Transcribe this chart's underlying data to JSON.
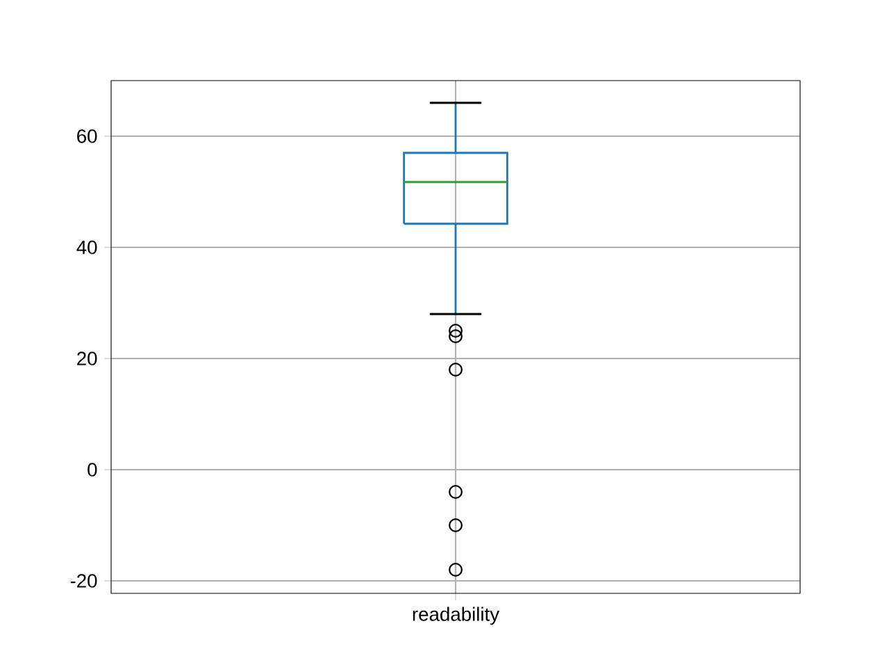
{
  "chart_data": {
    "type": "box",
    "categories": [
      "readability"
    ],
    "boxes": [
      {
        "low": 28,
        "q1": 44.25,
        "median": 51.75,
        "q3": 57,
        "high": 66,
        "outliers": [
          25,
          24,
          18,
          -4,
          -10,
          -18
        ]
      }
    ],
    "color": "#1f77b4",
    "ylim": [
      -22.25,
      70
    ],
    "yticks": [
      -20,
      0,
      20,
      40,
      60
    ],
    "grid": true
  }
}
